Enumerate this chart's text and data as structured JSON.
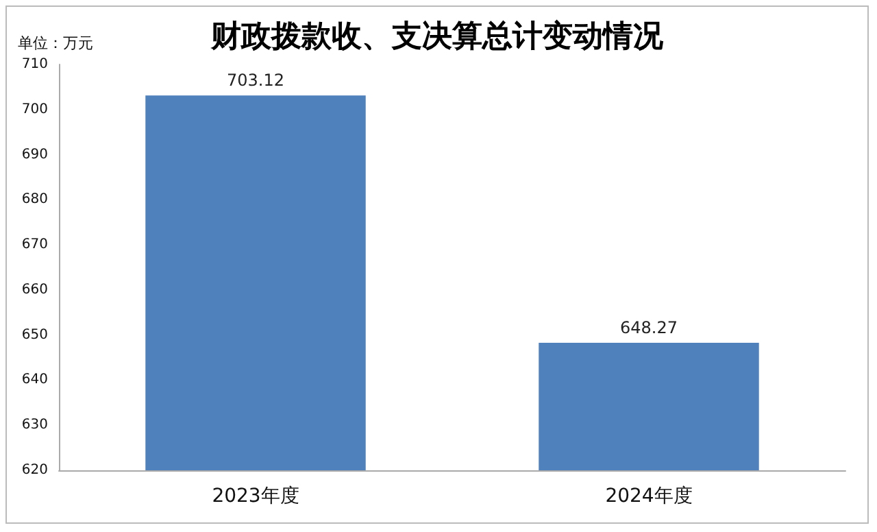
{
  "chart_data": {
    "type": "bar",
    "title": "财政拨款收、支决算总计变动情况",
    "ylabel": "单位：万元",
    "categories": [
      "2023年度",
      "2024年度"
    ],
    "values": [
      703.12,
      648.27
    ],
    "color": "#4f81bd",
    "ylim": [
      620,
      710
    ],
    "yticks": [
      620,
      630,
      640,
      650,
      660,
      670,
      680,
      690,
      700,
      710
    ],
    "grid": false,
    "data_labels": true
  }
}
